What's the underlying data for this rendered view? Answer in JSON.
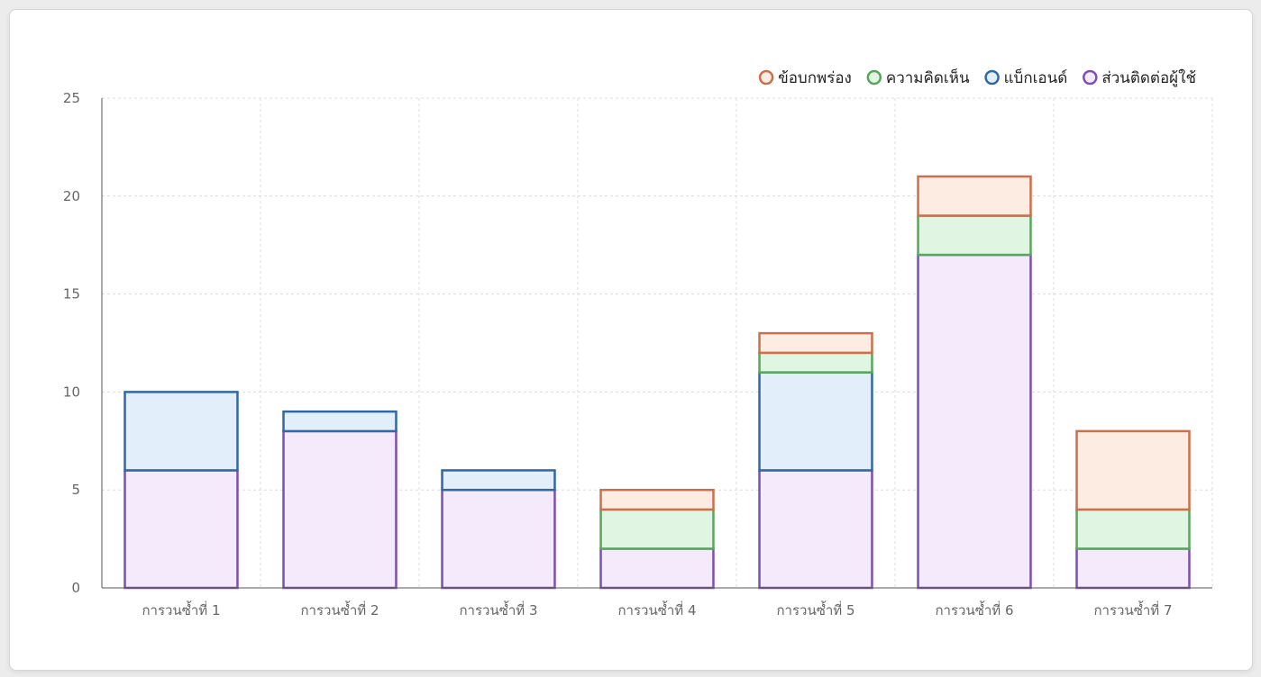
{
  "chart_data": {
    "type": "bar",
    "stacked": true,
    "categories": [
      "การวนซ้ำที่ 1",
      "การวนซ้ำที่ 2",
      "การวนซ้ำที่ 3",
      "การวนซ้ำที่ 4",
      "การวนซ้ำที่ 5",
      "การวนซ้ำที่ 6",
      "การวนซ้ำที่ 7"
    ],
    "series": [
      {
        "name": "ส่วนติดต่อผู้ใช้",
        "values": [
          6,
          8,
          5,
          2,
          6,
          17,
          2
        ],
        "border": "#7e4fb0",
        "fill": "#f5eafb"
      },
      {
        "name": "แบ็กเอนด์",
        "values": [
          4,
          1,
          1,
          0,
          5,
          0,
          0
        ],
        "border": "#2f68a5",
        "fill": "#e2effa"
      },
      {
        "name": "ความคิดเห็น",
        "values": [
          0,
          0,
          0,
          2,
          1,
          2,
          2
        ],
        "border": "#58a65c",
        "fill": "#e1f5e3"
      },
      {
        "name": "ข้อบกพร่อง",
        "values": [
          0,
          0,
          0,
          1,
          1,
          2,
          4
        ],
        "border": "#c9704d",
        "fill": "#fcece2"
      }
    ],
    "legend_order": [
      "ข้อบกพร่อง",
      "ความคิดเห็น",
      "แบ็กเอนด์",
      "ส่วนติดต่อผู้ใช้"
    ],
    "legend_position": "top-right",
    "ylim": [
      0,
      25
    ],
    "yticks": [
      0,
      5,
      10,
      15,
      20,
      25
    ],
    "grid": true,
    "title": "",
    "xlabel": "",
    "ylabel": ""
  }
}
